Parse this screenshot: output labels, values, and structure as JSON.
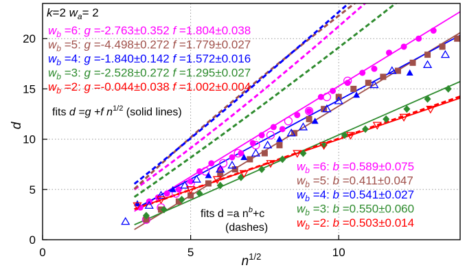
{
  "chart_data": {
    "type": "scatter",
    "xlabel": "n^{1/2}",
    "ylabel": "d",
    "xlim": [
      0,
      14.1
    ],
    "ylim": [
      0,
      23.5
    ],
    "xticks": [
      0,
      5,
      10
    ],
    "yticks": [
      0,
      5,
      10,
      15,
      20
    ],
    "grid": true,
    "params_label": {
      "k": "2",
      "wa": "2"
    },
    "fit_note_solid": {
      "prefix": "fits ",
      "formula": "d =g +f n",
      "exp": "1/2",
      "suffix": "  (solid lines)"
    },
    "fit_note_dashed": {
      "line1": "fits d =a n",
      "exp": "b",
      "tail": "+c",
      "line2": "(dashes)"
    },
    "series": [
      {
        "name": "wb=6",
        "wb": "6",
        "color": "#ff00ff",
        "marker": "dot",
        "g": "-2.763±0.352",
        "f": "1.804±0.038",
        "b": "0.589±0.075",
        "fit_solid": {
          "g": -2.763,
          "f": 1.804
        },
        "fit_dashed": {
          "a": 1.44,
          "b": 0.589,
          "c": -0.47,
          "x0": 3.1
        },
        "x": [
          3.3,
          3.6,
          3.9,
          4.2,
          4.6,
          5.0,
          5.3,
          5.7,
          6.0,
          6.4,
          6.7,
          7.1,
          7.4,
          7.8,
          8.1,
          8.6,
          9.0,
          9.4,
          9.8,
          10.3,
          10.8,
          11.2,
          11.7,
          12.2,
          12.7,
          13.2
        ],
        "y": [
          3.2,
          3.8,
          4.2,
          4.6,
          5.0,
          5.8,
          6.8,
          7.6,
          7.0,
          8.2,
          8.6,
          9.6,
          10.4,
          11.2,
          11.0,
          12.4,
          12.8,
          14.2,
          14.8,
          15.6,
          16.6,
          17.0,
          18.6,
          19.2,
          20.0,
          20.8
        ]
      },
      {
        "name": "wb=6",
        "wb": "6",
        "color": "#ff00ff",
        "marker": "circle",
        "points_only": true,
        "x": [
          3.5,
          4.0,
          4.5,
          5.0,
          5.5,
          6.1,
          6.6,
          7.2,
          7.7,
          8.3,
          9.0,
          9.6,
          10.3
        ],
        "y": [
          2.0,
          3.2,
          4.6,
          5.6,
          6.8,
          7.6,
          8.6,
          9.4,
          10.4,
          11.8,
          12.8,
          14.2,
          15.8
        ]
      },
      {
        "name": "wb=5",
        "wb": "5",
        "color": "#a0504a",
        "marker": "square",
        "g": "-4.498±0.272",
        "f": "1.779±0.027",
        "b": "0.411±0.047",
        "fit_solid": {
          "g": -4.498,
          "f": 1.779
        },
        "fit_dashed": {
          "a": 4.2,
          "b": 0.411,
          "c": -5.6,
          "x0": 3.1
        },
        "x": [
          3.5,
          4.0,
          4.6,
          5.0,
          5.6,
          6.0,
          6.5,
          7.0,
          7.5,
          8.0,
          8.5,
          9.0,
          9.5,
          10.0,
          10.5,
          11.0,
          11.5,
          12.0,
          12.5,
          13.0,
          13.5,
          14.0
        ],
        "y": [
          2.0,
          3.0,
          3.8,
          4.4,
          5.6,
          6.6,
          7.0,
          8.0,
          8.6,
          9.4,
          10.6,
          12.0,
          13.0,
          14.2,
          15.0,
          15.6,
          16.2,
          16.8,
          17.6,
          18.4,
          19.2,
          20.0
        ]
      },
      {
        "name": "wb=4",
        "wb": "4",
        "color": "#0000ff",
        "marker": "triangle",
        "g": "-1.840±0.142",
        "f": "1.572±0.016",
        "b": "0.541±0.027",
        "fit_solid": {
          "g": -1.84,
          "f": 1.572
        },
        "fit_dashed": {
          "a": 1.97,
          "b": 0.541,
          "c": -1.15,
          "x0": 3.1
        },
        "x": [
          2.8,
          3.2,
          3.6,
          4.0,
          4.4,
          4.8,
          5.2,
          5.6,
          6.0,
          6.4,
          6.8,
          7.2,
          7.6,
          8.0,
          8.4,
          8.8,
          9.2,
          9.6,
          10.0,
          10.6,
          11.2,
          11.8,
          12.4,
          13.0,
          13.6
        ],
        "y": [
          1.8,
          3.6,
          3.4,
          4.4,
          5.0,
          5.4,
          6.0,
          6.4,
          7.0,
          7.4,
          8.2,
          8.6,
          9.4,
          10.0,
          10.6,
          11.2,
          11.8,
          13.0,
          13.8,
          14.4,
          15.4,
          16.8,
          16.6,
          17.4,
          18.4
        ]
      },
      {
        "name": "wb=3",
        "wb": "3",
        "color": "#2e8b2e",
        "marker": "diamond",
        "g": "-2.528±0.272",
        "f": "1.295±0.027",
        "b": "0.550±0.060",
        "fit_solid": {
          "g": -2.528,
          "f": 1.295
        },
        "fit_dashed": {
          "a": 1.63,
          "b": 0.55,
          "c": -1.4,
          "x0": 3.1
        },
        "x": [
          3.5,
          4.1,
          4.7,
          5.3,
          6.0,
          6.7,
          7.4,
          8.1,
          8.8,
          9.5,
          10.2,
          10.9,
          11.6,
          12.3,
          13.0,
          13.7
        ],
        "y": [
          2.4,
          3.0,
          4.0,
          4.6,
          5.4,
          6.2,
          7.0,
          8.0,
          8.6,
          9.4,
          10.4,
          11.0,
          12.0,
          13.0,
          14.0,
          15.0
        ]
      },
      {
        "name": "wb=2",
        "wb": "2",
        "color": "#ff0000",
        "marker": "triangle-down",
        "g": "-0.044±0.038",
        "f": "1.002±0.004",
        "b": "0.503±0.014",
        "fit_solid": {
          "g": -0.044,
          "f": 1.002
        },
        "fit_dashed": {
          "a": 1.0,
          "b": 0.503,
          "c": -0.08,
          "x0": 3.1
        },
        "x": [
          3.2,
          4.0,
          5.0,
          5.9,
          6.8,
          7.7,
          8.6,
          9.5,
          10.4,
          11.3,
          12.2,
          13.1
        ],
        "y": [
          3.4,
          4.0,
          5.0,
          6.0,
          6.6,
          7.6,
          8.6,
          9.4,
          10.4,
          11.4,
          12.2,
          13.0
        ]
      }
    ]
  }
}
